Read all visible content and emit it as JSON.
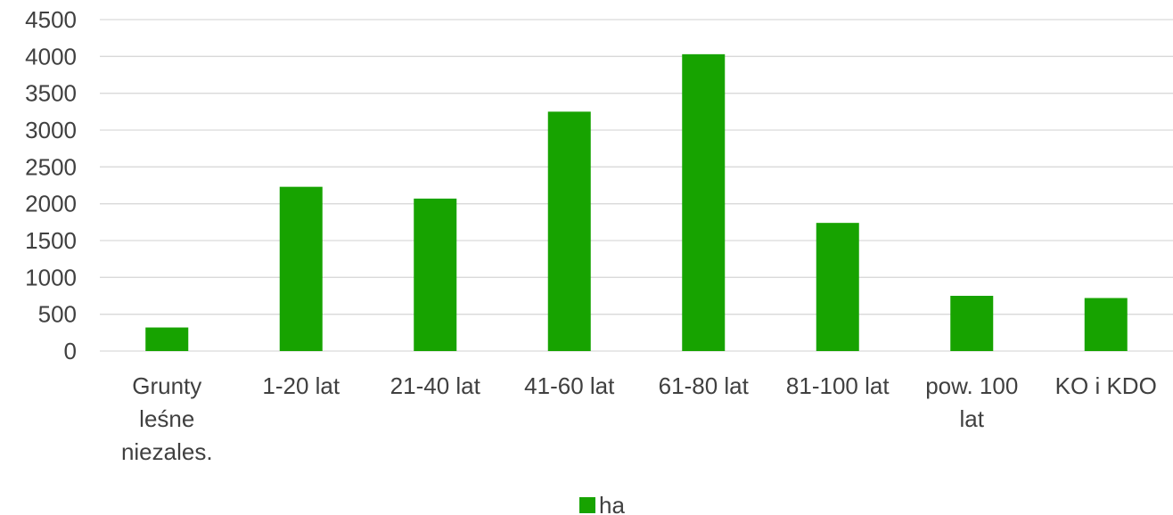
{
  "chart_data": {
    "type": "bar",
    "categories": [
      [
        "Grunty",
        "leśne",
        "niezales."
      ],
      [
        "1-20 lat"
      ],
      [
        "21-40 lat"
      ],
      [
        "41-60 lat"
      ],
      [
        "61-80 lat"
      ],
      [
        "81-100 lat"
      ],
      [
        "pow. 100",
        "lat"
      ],
      [
        "KO i KDO"
      ]
    ],
    "series": [
      {
        "name": "ha",
        "color": "#17a300",
        "values": [
          320,
          2230,
          2070,
          3250,
          4030,
          1740,
          750,
          720
        ]
      }
    ],
    "ylim": [
      0,
      4500
    ],
    "yticks": [
      0,
      500,
      1000,
      1500,
      2000,
      2500,
      3000,
      3500,
      4000,
      4500
    ],
    "grid": true,
    "legend": "bottom-center",
    "title": "",
    "xlabel": "",
    "ylabel": ""
  }
}
